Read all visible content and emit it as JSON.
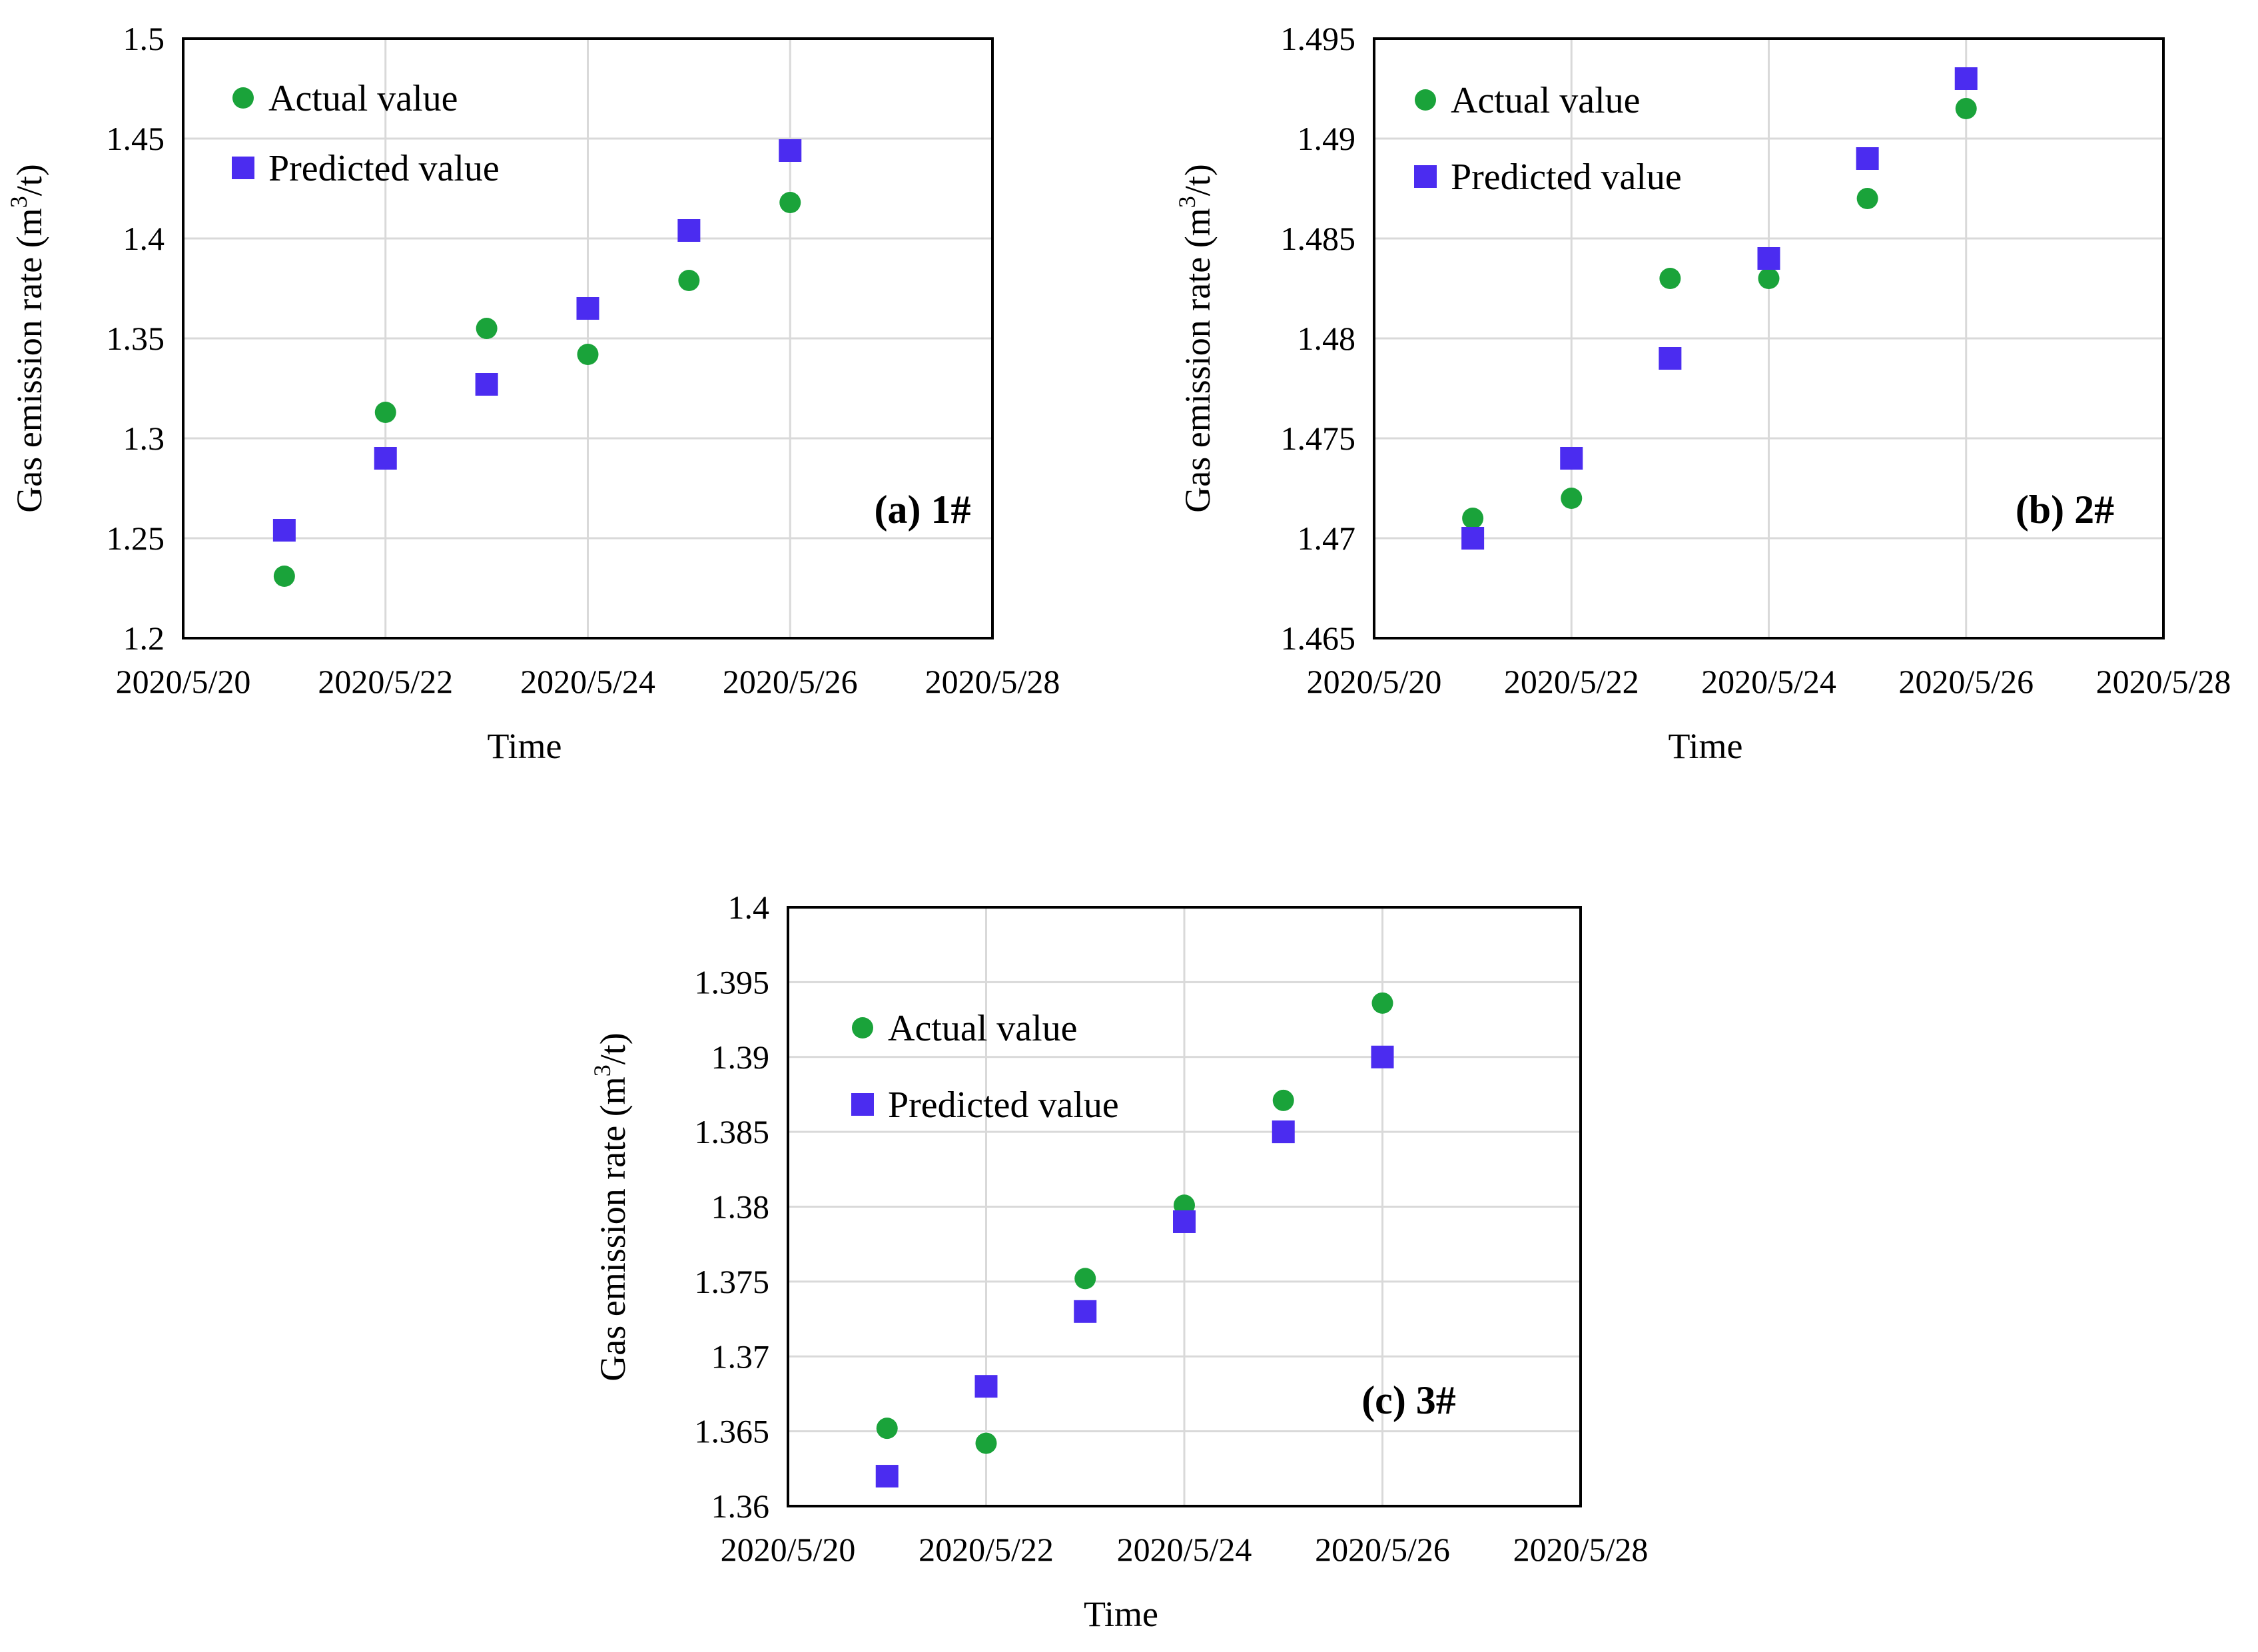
{
  "chart_data": [
    {
      "type": "scatter",
      "panel_label": "(a) 1#",
      "xlabel": "Time",
      "ylabel_prefix": "Gas emission rate (m",
      "ylabel_sup": "3",
      "ylabel_suffix": "/t)",
      "x_ticks": [
        "2020/5/20",
        "2020/5/22",
        "2020/5/24",
        "2020/5/26",
        "2020/5/28"
      ],
      "x_range": [
        0,
        8
      ],
      "y_ticks": [
        "1.2",
        "1.25",
        "1.3",
        "1.35",
        "1.4",
        "1.45",
        "1.5"
      ],
      "ylim": [
        1.2,
        1.5
      ],
      "grid": true,
      "legend_position": "top-left",
      "series": [
        {
          "name": "Actual value",
          "marker": "circle",
          "color": "#1aa33a",
          "x": [
            "2020/5/21",
            "2020/5/22",
            "2020/5/23",
            "2020/5/24",
            "2020/5/25",
            "2020/5/26"
          ],
          "x_index": [
            1,
            2,
            3,
            4,
            5,
            6
          ],
          "values": [
            1.231,
            1.313,
            1.355,
            1.342,
            1.379,
            1.418
          ]
        },
        {
          "name": "Predicted value",
          "marker": "square",
          "color": "#4b2cf0",
          "x": [
            "2020/5/21",
            "2020/5/22",
            "2020/5/23",
            "2020/5/24",
            "2020/5/25",
            "2020/5/26"
          ],
          "x_index": [
            1,
            2,
            3,
            4,
            5,
            6
          ],
          "values": [
            1.254,
            1.29,
            1.327,
            1.365,
            1.404,
            1.444
          ]
        }
      ]
    },
    {
      "type": "scatter",
      "panel_label": "(b) 2#",
      "xlabel": "Time",
      "ylabel_prefix": "Gas emission rate (m",
      "ylabel_sup": "3",
      "ylabel_suffix": "/t)",
      "x_ticks": [
        "2020/5/20",
        "2020/5/22",
        "2020/5/24",
        "2020/5/26",
        "2020/5/28"
      ],
      "x_range": [
        0,
        8
      ],
      "y_ticks": [
        "1.465",
        "1.47",
        "1.475",
        "1.48",
        "1.485",
        "1.49",
        "1.495"
      ],
      "ylim": [
        1.465,
        1.495
      ],
      "grid": true,
      "legend_position": "top-left",
      "series": [
        {
          "name": "Actual value",
          "marker": "circle",
          "color": "#1aa33a",
          "x": [
            "2020/5/21",
            "2020/5/22",
            "2020/5/23",
            "2020/5/24",
            "2020/5/25",
            "2020/5/26"
          ],
          "x_index": [
            1,
            2,
            3,
            4,
            5,
            6
          ],
          "values": [
            1.471,
            1.472,
            1.483,
            1.483,
            1.487,
            1.4915
          ]
        },
        {
          "name": "Predicted value",
          "marker": "square",
          "color": "#4b2cf0",
          "x": [
            "2020/5/21",
            "2020/5/22",
            "2020/5/23",
            "2020/5/24",
            "2020/5/25",
            "2020/5/26"
          ],
          "x_index": [
            1,
            2,
            3,
            4,
            5,
            6
          ],
          "values": [
            1.47,
            1.474,
            1.479,
            1.484,
            1.489,
            1.493
          ]
        }
      ]
    },
    {
      "type": "scatter",
      "panel_label": "(c) 3#",
      "xlabel": "Time",
      "ylabel_prefix": "Gas emission rate (m",
      "ylabel_sup": "3",
      "ylabel_suffix": "/t)",
      "x_ticks": [
        "2020/5/20",
        "2020/5/22",
        "2020/5/24",
        "2020/5/26",
        "2020/5/28"
      ],
      "x_range": [
        0,
        8
      ],
      "y_ticks": [
        "1.36",
        "1.365",
        "1.37",
        "1.375",
        "1.38",
        "1.385",
        "1.39",
        "1.395",
        "1.4"
      ],
      "ylim": [
        1.36,
        1.4
      ],
      "grid": true,
      "legend_position": "top-left",
      "series": [
        {
          "name": "Actual value",
          "marker": "circle",
          "color": "#1aa33a",
          "x": [
            "2020/5/21",
            "2020/5/22",
            "2020/5/23",
            "2020/5/24",
            "2020/5/25",
            "2020/5/26"
          ],
          "x_index": [
            1,
            2,
            3,
            4,
            5,
            6
          ],
          "values": [
            1.3652,
            1.3642,
            1.3752,
            1.3801,
            1.3871,
            1.3936
          ]
        },
        {
          "name": "Predicted value",
          "marker": "square",
          "color": "#4b2cf0",
          "x": [
            "2020/5/21",
            "2020/5/22",
            "2020/5/23",
            "2020/5/24",
            "2020/5/25",
            "2020/5/26"
          ],
          "x_index": [
            1,
            2,
            3,
            4,
            5,
            6
          ],
          "values": [
            1.362,
            1.368,
            1.373,
            1.379,
            1.385,
            1.39
          ]
        }
      ]
    }
  ]
}
